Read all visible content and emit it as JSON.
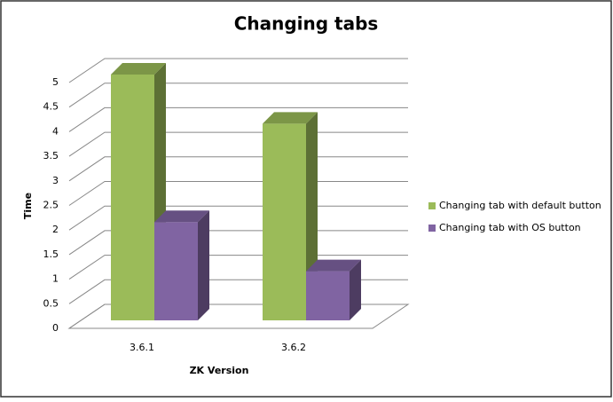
{
  "chart_data": {
    "type": "bar3d",
    "title": "Changing tabs",
    "x_label": "ZK Version",
    "y_label": "Time",
    "categories": [
      "3.6.1",
      "3.6.2"
    ],
    "series": [
      {
        "name": "Changing tab with default button",
        "color": "#9bbb59",
        "values": [
          5,
          4
        ]
      },
      {
        "name": "Changing tab with OS button",
        "color": "#8064a2",
        "values": [
          2,
          1
        ]
      }
    ],
    "ylim": [
      0,
      5
    ],
    "yticks": [
      0,
      0.5,
      1,
      1.5,
      2,
      2.5,
      3,
      3.5,
      4,
      4.5,
      5
    ],
    "grid": true,
    "legend": "right"
  }
}
